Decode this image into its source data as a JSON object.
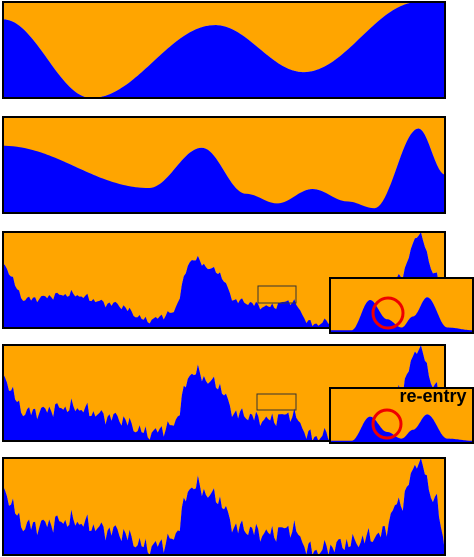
{
  "annotation": "re-entry"
}
